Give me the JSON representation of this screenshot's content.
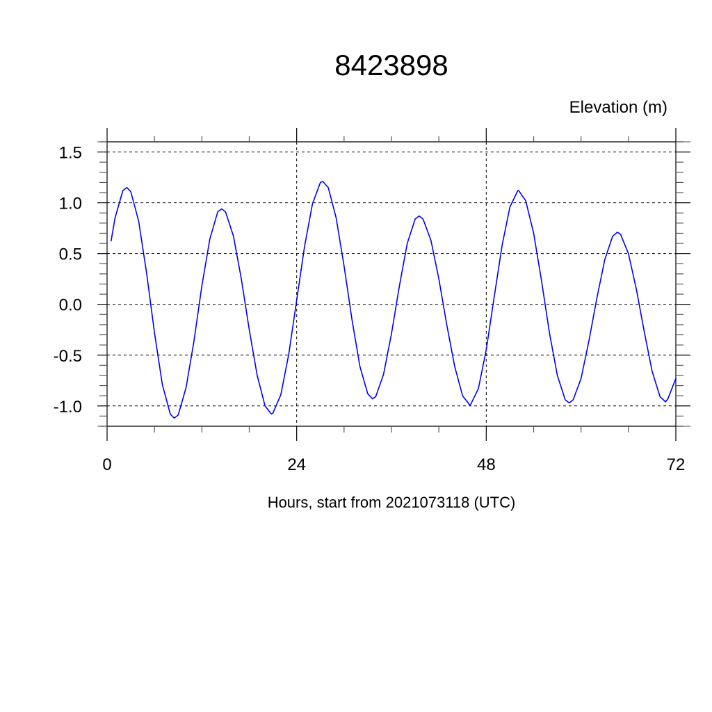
{
  "chart_data": {
    "type": "line",
    "title": "8423898",
    "ylabel": "Elevation (m)",
    "xlabel": "Hours, start from 2021073118 (UTC)",
    "xlim": [
      0,
      72
    ],
    "ylim": [
      -1.2,
      1.6
    ],
    "x_ticks": [
      0,
      24,
      48,
      72
    ],
    "x_tick_labels": [
      "0",
      "24",
      "48",
      "72"
    ],
    "y_ticks": [
      -1.0,
      -0.5,
      0.0,
      0.5,
      1.0,
      1.5
    ],
    "y_tick_labels": [
      "-1.0",
      "-0.5",
      "0.0",
      "0.5",
      "1.0",
      "1.5"
    ],
    "grid": "dashed at major ticks",
    "line_color": "#0000ff",
    "series": [
      {
        "x": [
          0.5,
          1,
          2,
          2.5,
          3,
          4,
          5,
          6,
          7,
          8,
          8.5,
          9,
          10,
          11,
          12,
          13,
          14,
          14.5,
          15,
          16,
          17,
          18,
          19,
          20,
          20.8,
          21,
          22,
          23,
          24,
          25,
          26,
          27,
          27.3,
          28,
          29,
          30,
          31,
          32,
          33,
          33.6,
          34,
          35,
          36,
          37,
          38,
          39,
          39.5,
          40,
          41,
          42,
          43,
          44,
          45,
          45.9,
          46,
          47,
          48,
          49,
          50,
          51,
          52,
          52.1,
          53,
          54,
          55,
          56,
          57,
          58,
          58.5,
          59,
          60,
          61,
          62,
          63,
          64,
          64.6,
          65,
          66,
          67,
          68,
          69,
          70,
          70.7,
          71,
          72
        ],
        "values": [
          0.62,
          0.85,
          1.12,
          1.15,
          1.11,
          0.82,
          0.31,
          -0.28,
          -0.79,
          -1.08,
          -1.12,
          -1.09,
          -0.82,
          -0.36,
          0.18,
          0.64,
          0.91,
          0.94,
          0.91,
          0.67,
          0.25,
          -0.25,
          -0.7,
          -1.0,
          -1.08,
          -1.07,
          -0.89,
          -0.49,
          0.04,
          0.57,
          0.99,
          1.2,
          1.21,
          1.15,
          0.85,
          0.38,
          -0.15,
          -0.61,
          -0.88,
          -0.93,
          -0.91,
          -0.69,
          -0.29,
          0.18,
          0.6,
          0.84,
          0.87,
          0.84,
          0.63,
          0.25,
          -0.2,
          -0.61,
          -0.9,
          -0.99,
          -0.99,
          -0.83,
          -0.45,
          0.07,
          0.58,
          0.96,
          1.12,
          1.12,
          1.02,
          0.7,
          0.23,
          -0.28,
          -0.7,
          -0.94,
          -0.97,
          -0.94,
          -0.73,
          -0.36,
          0.06,
          0.44,
          0.67,
          0.71,
          0.69,
          0.5,
          0.15,
          -0.27,
          -0.66,
          -0.91,
          -0.96,
          -0.93,
          -0.73
        ]
      }
    ]
  }
}
